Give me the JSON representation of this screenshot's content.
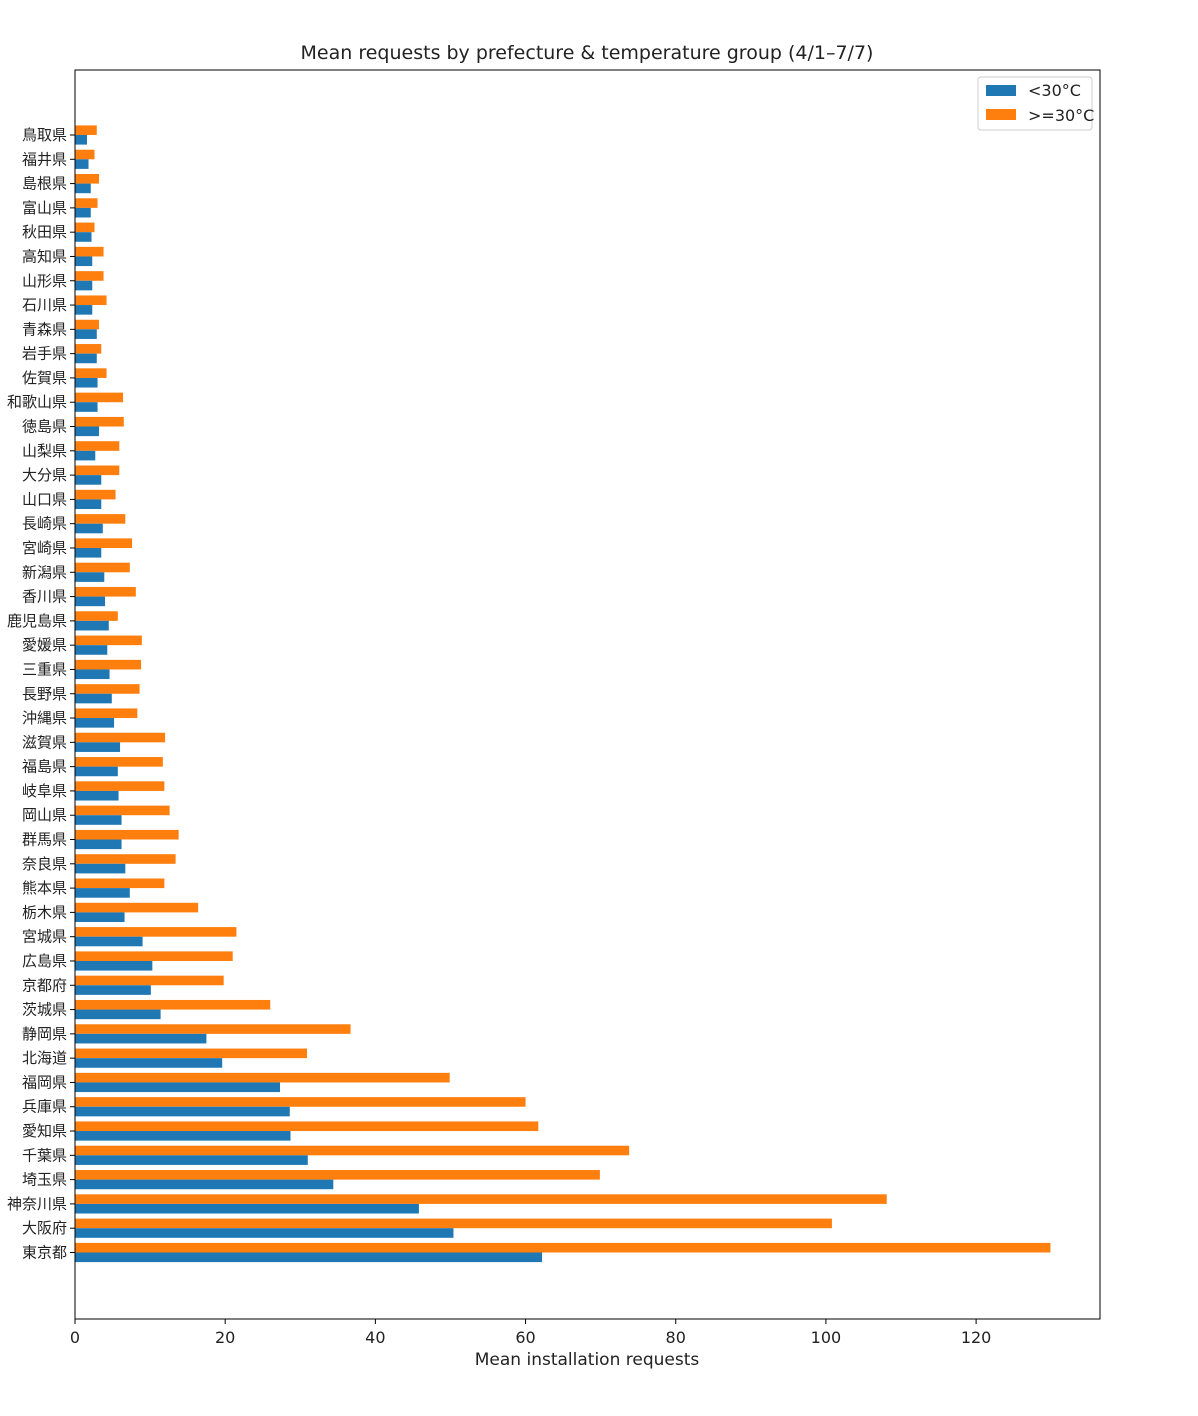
{
  "chart_data": {
    "type": "bar",
    "orientation": "horizontal",
    "title": "Mean requests by prefecture & temperature group (4/1–7/7)",
    "xlabel": "Mean installation requests",
    "ylabel": "",
    "xlim": [
      0,
      136.5
    ],
    "xticks": [
      0,
      20,
      40,
      60,
      80,
      100,
      120
    ],
    "grid": false,
    "legend_position": "top-right",
    "categories": [
      "鳥取県",
      "福井県",
      "島根県",
      "富山県",
      "秋田県",
      "高知県",
      "山形県",
      "石川県",
      "青森県",
      "岩手県",
      "佐賀県",
      "和歌山県",
      "徳島県",
      "山梨県",
      "大分県",
      "山口県",
      "長崎県",
      "宮崎県",
      "新潟県",
      "香川県",
      "鹿児島県",
      "愛媛県",
      "三重県",
      "長野県",
      "沖縄県",
      "滋賀県",
      "福島県",
      "岐阜県",
      "岡山県",
      "群馬県",
      "奈良県",
      "熊本県",
      "栃木県",
      "宮城県",
      "広島県",
      "京都府",
      "茨城県",
      "静岡県",
      "北海道",
      "福岡県",
      "兵庫県",
      "愛知県",
      "千葉県",
      "埼玉県",
      "神奈川県",
      "大阪府",
      "東京都"
    ],
    "series": [
      {
        "name": "<30°C",
        "color": "#1f77b4",
        "values": [
          1.6,
          1.8,
          2.1,
          2.1,
          2.2,
          2.3,
          2.3,
          2.3,
          2.9,
          2.9,
          3.0,
          3.0,
          3.2,
          2.7,
          3.5,
          3.5,
          3.7,
          3.5,
          3.9,
          4.0,
          4.5,
          4.3,
          4.6,
          4.9,
          5.2,
          6.0,
          5.7,
          5.8,
          6.2,
          6.2,
          6.7,
          7.3,
          6.6,
          9.0,
          10.3,
          10.1,
          11.4,
          17.5,
          19.6,
          27.3,
          28.6,
          28.7,
          31.0,
          34.4,
          45.8,
          50.4,
          62.2
        ]
      },
      {
        "name": ">=30°C",
        "color": "#ff7f0e",
        "values": [
          2.9,
          2.6,
          3.2,
          3.0,
          2.6,
          3.8,
          3.8,
          4.2,
          3.2,
          3.5,
          4.2,
          6.4,
          6.5,
          5.9,
          5.9,
          5.4,
          6.7,
          7.6,
          7.3,
          8.1,
          5.7,
          8.9,
          8.8,
          8.6,
          8.3,
          12.0,
          11.7,
          11.9,
          12.6,
          13.8,
          13.4,
          11.9,
          16.4,
          21.5,
          21.0,
          19.8,
          26.0,
          36.7,
          30.9,
          49.9,
          60.0,
          61.7,
          73.8,
          69.9,
          108.1,
          100.8,
          129.9
        ]
      }
    ]
  }
}
